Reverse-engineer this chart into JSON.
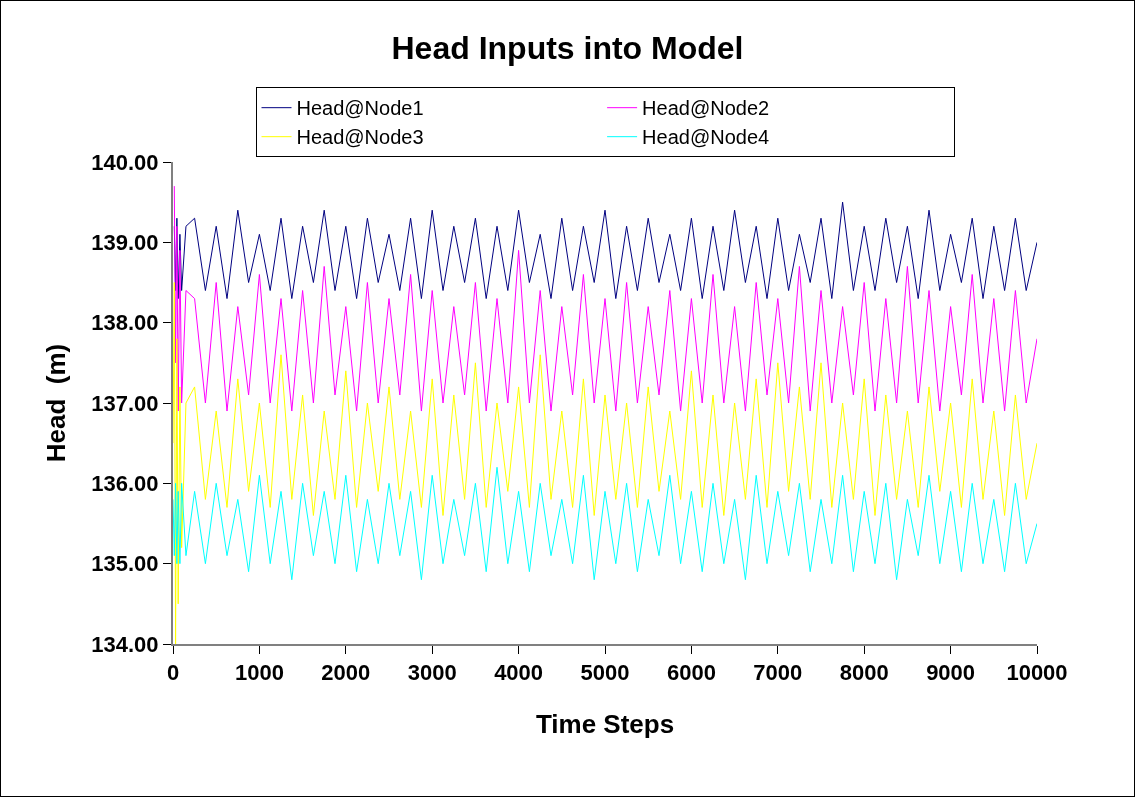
{
  "chart_data": {
    "type": "line",
    "title": "Head Inputs into Model",
    "xlabel": "Time Steps",
    "ylabel": "Head  (m)",
    "x": [
      0,
      15,
      30,
      45,
      60,
      80,
      100,
      150,
      250,
      375,
      500,
      625,
      750,
      875,
      1000,
      1125,
      1250,
      1375,
      1500,
      1625,
      1750,
      1875,
      2000,
      2125,
      2250,
      2375,
      2500,
      2625,
      2750,
      2875,
      3000,
      3125,
      3250,
      3375,
      3500,
      3625,
      3750,
      3875,
      4000,
      4125,
      4250,
      4375,
      4500,
      4625,
      4750,
      4875,
      5000,
      5125,
      5250,
      5375,
      5500,
      5625,
      5750,
      5875,
      6000,
      6125,
      6250,
      6375,
      6500,
      6625,
      6750,
      6875,
      7000,
      7125,
      7250,
      7375,
      7500,
      7625,
      7750,
      7875,
      8000,
      8125,
      8250,
      8375,
      8500,
      8625,
      8750,
      8875,
      9000,
      9125,
      9250,
      9375,
      9500,
      9625,
      9750,
      9875,
      10000
    ],
    "series": [
      {
        "name": "Head@Node1",
        "color": "#000080",
        "values": [
          null,
          139.2,
          138.4,
          139.3,
          138.3,
          139.1,
          138.4,
          139.2,
          139.3,
          138.4,
          139.2,
          138.3,
          139.4,
          138.5,
          139.1,
          138.4,
          139.3,
          138.3,
          139.2,
          138.5,
          139.4,
          138.4,
          139.2,
          138.3,
          139.3,
          138.5,
          139.1,
          138.4,
          139.3,
          138.3,
          139.4,
          138.4,
          139.2,
          138.5,
          139.3,
          138.3,
          139.2,
          138.4,
          139.4,
          138.5,
          139.1,
          138.3,
          139.3,
          138.4,
          139.2,
          138.5,
          139.4,
          138.3,
          139.2,
          138.4,
          139.3,
          138.5,
          139.1,
          138.4,
          139.3,
          138.3,
          139.2,
          138.4,
          139.4,
          138.5,
          139.2,
          138.3,
          139.3,
          138.4,
          139.1,
          138.5,
          139.3,
          138.3,
          139.5,
          138.4,
          139.2,
          138.4,
          139.3,
          138.5,
          139.2,
          138.3,
          139.4,
          138.4,
          139.1,
          138.5,
          139.3,
          138.3,
          139.2,
          138.4,
          139.3,
          138.4,
          139.0
        ]
      },
      {
        "name": "Head@Node2",
        "color": "#ff00ff",
        "values": [
          null,
          139.7,
          137.5,
          139.2,
          136.9,
          138.9,
          137.0,
          138.4,
          138.3,
          137.0,
          138.5,
          136.9,
          138.2,
          137.1,
          138.6,
          137.0,
          138.3,
          136.9,
          138.4,
          137.0,
          138.7,
          137.1,
          138.2,
          136.9,
          138.5,
          137.0,
          138.3,
          137.1,
          138.6,
          136.9,
          138.4,
          137.0,
          138.2,
          137.1,
          138.5,
          136.9,
          138.3,
          137.0,
          138.9,
          137.0,
          138.4,
          136.9,
          138.2,
          137.1,
          138.6,
          137.0,
          138.3,
          136.9,
          138.5,
          137.0,
          138.2,
          137.1,
          138.4,
          136.9,
          138.3,
          137.0,
          138.6,
          137.0,
          138.2,
          136.9,
          138.5,
          137.1,
          138.3,
          137.0,
          138.7,
          136.9,
          138.4,
          137.0,
          138.2,
          137.1,
          138.5,
          136.9,
          138.3,
          137.0,
          138.7,
          137.0,
          138.4,
          136.9,
          138.2,
          137.1,
          138.6,
          137.0,
          138.3,
          136.9,
          138.4,
          137.0,
          137.8
        ]
      },
      {
        "name": "Head@Node3",
        "color": "#ffff00",
        "values": [
          136.5,
          138.5,
          134.0,
          137.8,
          134.5,
          137.2,
          135.2,
          137.0,
          137.2,
          135.8,
          136.9,
          135.7,
          137.3,
          135.9,
          137.0,
          135.7,
          137.6,
          135.8,
          137.1,
          135.6,
          136.9,
          135.8,
          137.4,
          135.7,
          137.0,
          135.9,
          137.2,
          135.8,
          136.9,
          135.7,
          137.3,
          135.6,
          137.1,
          135.8,
          137.5,
          135.7,
          137.0,
          135.9,
          137.2,
          135.7,
          137.6,
          135.8,
          136.9,
          135.7,
          137.3,
          135.6,
          137.1,
          135.8,
          137.0,
          135.7,
          137.2,
          135.9,
          136.9,
          135.8,
          137.4,
          135.7,
          137.1,
          135.6,
          137.0,
          135.8,
          137.3,
          135.7,
          137.5,
          135.9,
          137.2,
          135.8,
          137.5,
          135.7,
          137.0,
          135.8,
          137.3,
          135.6,
          137.1,
          135.8,
          136.9,
          135.7,
          137.2,
          135.9,
          137.0,
          135.7,
          137.3,
          135.8,
          136.9,
          135.6,
          137.1,
          135.8,
          136.5
        ]
      },
      {
        "name": "Head@Node4",
        "color": "#00ffff",
        "values": [
          135.8,
          135.1,
          136.0,
          135.0,
          135.9,
          135.0,
          136.0,
          135.1,
          135.9,
          135.0,
          136.0,
          135.1,
          135.8,
          134.9,
          136.1,
          135.0,
          135.9,
          134.8,
          136.0,
          135.1,
          135.9,
          135.0,
          136.1,
          134.9,
          135.8,
          135.0,
          136.0,
          135.1,
          135.9,
          134.8,
          136.1,
          135.0,
          135.8,
          135.1,
          136.0,
          134.9,
          136.2,
          135.0,
          135.9,
          134.9,
          136.0,
          135.1,
          135.8,
          135.0,
          136.1,
          134.8,
          135.9,
          135.0,
          136.0,
          134.9,
          135.8,
          135.1,
          136.1,
          135.0,
          135.9,
          134.9,
          136.0,
          135.0,
          135.8,
          134.8,
          136.1,
          135.0,
          135.9,
          135.1,
          136.0,
          134.9,
          135.8,
          135.0,
          136.1,
          134.9,
          135.9,
          135.0,
          136.0,
          134.8,
          135.8,
          135.1,
          136.1,
          135.0,
          135.9,
          134.9,
          136.0,
          135.0,
          135.8,
          134.9,
          136.0,
          135.0,
          135.5
        ]
      }
    ],
    "xlim": [
      0,
      10000
    ],
    "xticks": [
      0,
      1000,
      2000,
      3000,
      4000,
      5000,
      6000,
      7000,
      8000,
      9000,
      10000
    ],
    "ylim": [
      134,
      140
    ],
    "yticks": [
      {
        "value": 134,
        "label": "134.00"
      },
      {
        "value": 135,
        "label": "135.00"
      },
      {
        "value": 136,
        "label": "136.00"
      },
      {
        "value": 137,
        "label": "137.00"
      },
      {
        "value": 138,
        "label": "138.00"
      },
      {
        "value": 139,
        "label": "139.00"
      },
      {
        "value": 140,
        "label": "140.00"
      }
    ],
    "legend": "top"
  }
}
